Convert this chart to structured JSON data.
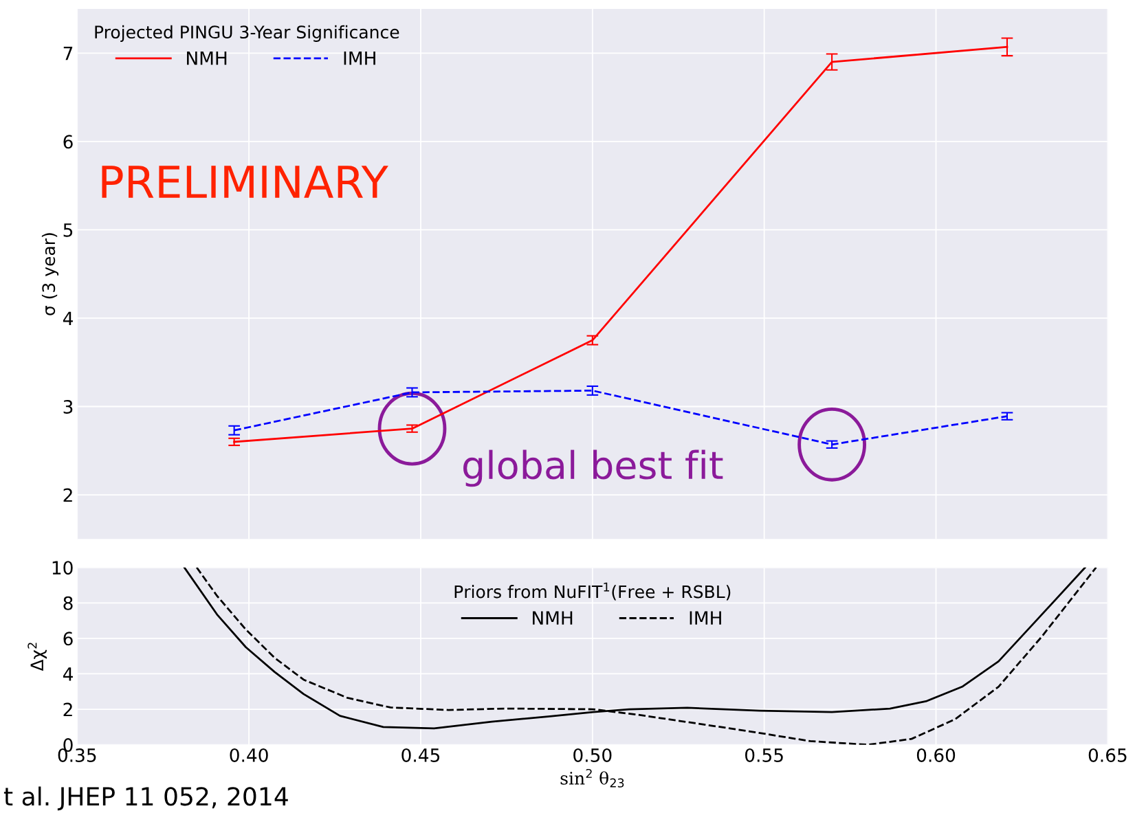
{
  "chart_data": [
    {
      "type": "line",
      "ylabel": "σ (3 year)",
      "legend_title": "Projected PINGU 3-Year Significance",
      "legend": "top left",
      "grid": true,
      "tick_labels": "y",
      "marker": "none",
      "xlim": [
        0.35,
        0.65
      ],
      "ylim": [
        1.5,
        7.5
      ],
      "yticks": [
        2,
        3,
        4,
        5,
        6,
        7
      ],
      "x": [
        0.3957,
        0.4475,
        0.5,
        0.5697,
        0.6207
      ],
      "series": [
        {
          "name": "NMH",
          "color": "#ff0000",
          "line_style": "solid",
          "values": [
            2.6,
            2.75,
            3.75,
            6.9,
            7.07
          ],
          "errors": [
            0.04,
            0.04,
            0.05,
            0.09,
            0.1
          ]
        },
        {
          "name": "IMH",
          "color": "#0000ff",
          "line_style": "dashed",
          "values": [
            2.73,
            3.16,
            3.18,
            2.57,
            2.89
          ],
          "errors": [
            0.05,
            0.05,
            0.05,
            0.04,
            0.04
          ]
        }
      ],
      "annotations": [
        "PRELIMINARY",
        "global best fit",
        "t al. JHEP 11 052, 2014"
      ]
    },
    {
      "type": "line",
      "xlabel": "sin$^{2}$ θ$_{23}$",
      "ylabel": "Δχ$^{2}$",
      "legend_title": "Priors from NuFIT$^{1}$(Free + RSBL)",
      "legend": "top",
      "grid": true,
      "marker": "none",
      "xlim": [
        0.35,
        0.65
      ],
      "ylim": [
        0,
        10
      ],
      "yticks": [
        0,
        2,
        4,
        6,
        8,
        10
      ],
      "xticks": [
        {
          "value": 0.35,
          "label": "0.35"
        },
        {
          "value": 0.4,
          "label": "0.40"
        },
        {
          "value": 0.45,
          "label": "0.45"
        },
        {
          "value": 0.5,
          "label": "0.50"
        },
        {
          "value": 0.55,
          "label": "0.55"
        },
        {
          "value": 0.6,
          "label": "0.60"
        },
        {
          "value": 0.65,
          "label": "0.65"
        }
      ],
      "series": [
        {
          "name": "NMH",
          "color": "#000000",
          "line_style": "solid",
          "x": [
            0.3812,
            0.3907,
            0.3991,
            0.4075,
            0.4159,
            0.4265,
            0.4391,
            0.4539,
            0.4707,
            0.4876,
            0.5002,
            0.5107,
            0.5276,
            0.5487,
            0.5697,
            0.5866,
            0.5971,
            0.6076,
            0.6182,
            0.6287,
            0.6434
          ],
          "values": [
            10,
            7.35,
            5.5,
            4.1,
            2.86,
            1.63,
            1.0,
            0.92,
            1.3,
            1.6,
            1.84,
            2.0,
            2.08,
            1.92,
            1.84,
            2.04,
            2.45,
            3.27,
            4.7,
            6.9,
            10
          ]
        },
        {
          "name": "IMH",
          "color": "#000000",
          "line_style": "dashed",
          "x": [
            0.3848,
            0.3907,
            0.3991,
            0.4075,
            0.4159,
            0.4286,
            0.4412,
            0.4581,
            0.4749,
            0.5002,
            0.5128,
            0.5297,
            0.5465,
            0.5634,
            0.5803,
            0.5929,
            0.6055,
            0.6182,
            0.6308,
            0.6466
          ],
          "values": [
            10,
            8.4,
            6.5,
            4.9,
            3.67,
            2.65,
            2.1,
            1.96,
            2.04,
            2.0,
            1.7,
            1.22,
            0.73,
            0.2,
            0.0,
            0.33,
            1.43,
            3.27,
            6.1,
            10
          ]
        }
      ]
    }
  ]
}
